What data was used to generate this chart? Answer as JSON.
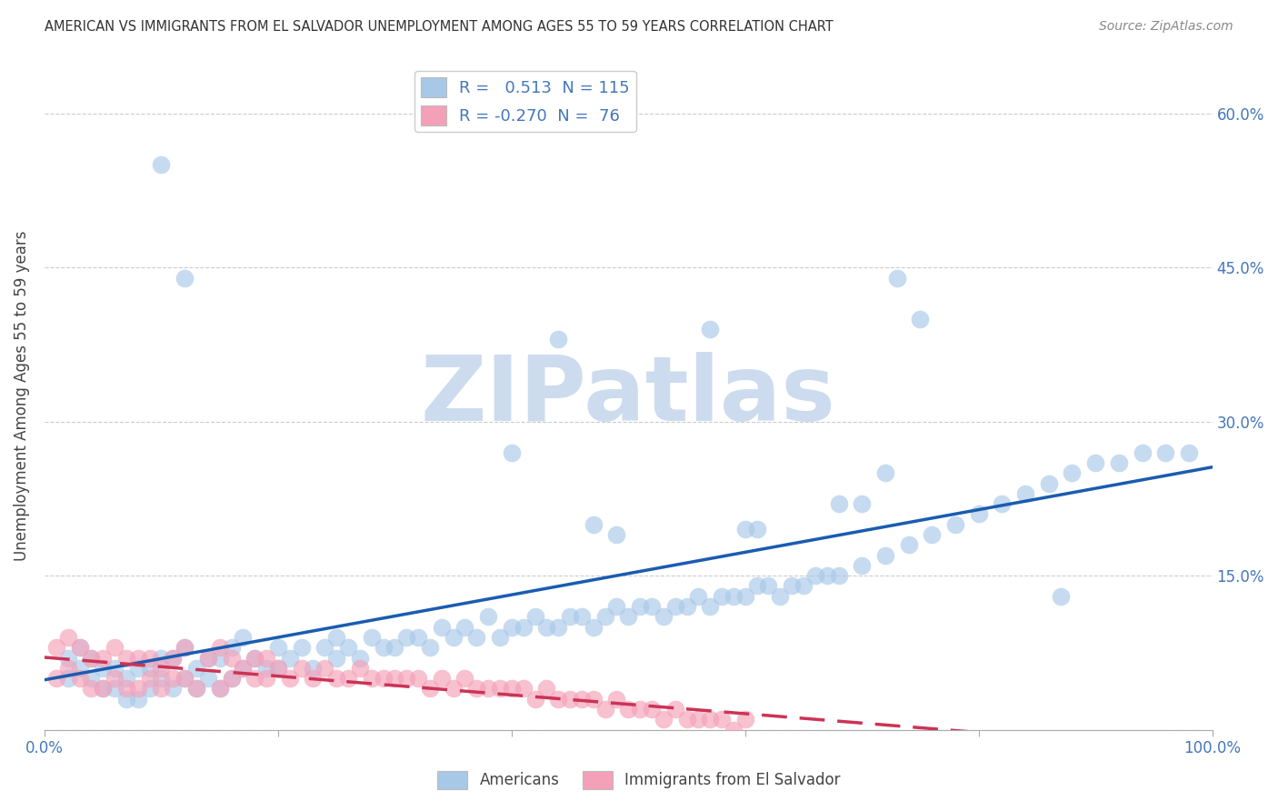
{
  "title": "AMERICAN VS IMMIGRANTS FROM EL SALVADOR UNEMPLOYMENT AMONG AGES 55 TO 59 YEARS CORRELATION CHART",
  "source": "Source: ZipAtlas.com",
  "ylabel": "Unemployment Among Ages 55 to 59 years",
  "xlim": [
    0.0,
    1.0
  ],
  "ylim": [
    0.0,
    0.65
  ],
  "americans_color": "#a8c8e8",
  "immigrants_color": "#f4a0b8",
  "americans_line_color": "#1a5cb0",
  "immigrants_line_color": "#cc3355",
  "legend_blue_box": "#a8c8e8",
  "legend_pink_box": "#f4a0b8",
  "R_americans": 0.513,
  "N_americans": 115,
  "R_immigrants": -0.27,
  "N_immigrants": 76,
  "watermark": "ZIPatlas",
  "watermark_color": "#ccdcee",
  "tick_color": "#4477bb",
  "grid_color": "#cccccc",
  "americans_x": [
    0.02,
    0.02,
    0.03,
    0.03,
    0.04,
    0.04,
    0.05,
    0.05,
    0.06,
    0.06,
    0.07,
    0.07,
    0.08,
    0.08,
    0.09,
    0.09,
    0.1,
    0.1,
    0.11,
    0.11,
    0.12,
    0.12,
    0.13,
    0.13,
    0.14,
    0.14,
    0.15,
    0.15,
    0.16,
    0.16,
    0.17,
    0.17,
    0.18,
    0.19,
    0.2,
    0.2,
    0.21,
    0.22,
    0.23,
    0.24,
    0.25,
    0.25,
    0.26,
    0.27,
    0.28,
    0.29,
    0.3,
    0.31,
    0.32,
    0.33,
    0.34,
    0.35,
    0.36,
    0.37,
    0.38,
    0.39,
    0.4,
    0.41,
    0.42,
    0.43,
    0.44,
    0.45,
    0.46,
    0.47,
    0.48,
    0.49,
    0.5,
    0.51,
    0.52,
    0.53,
    0.54,
    0.55,
    0.56,
    0.57,
    0.58,
    0.59,
    0.6,
    0.61,
    0.62,
    0.63,
    0.64,
    0.65,
    0.66,
    0.67,
    0.68,
    0.7,
    0.72,
    0.74,
    0.76,
    0.78,
    0.8,
    0.82,
    0.84,
    0.86,
    0.88,
    0.9,
    0.92,
    0.94,
    0.96,
    0.98,
    0.44,
    0.57,
    0.73,
    0.75,
    0.4,
    0.47,
    0.49,
    0.6,
    0.61,
    0.87,
    0.1,
    0.12,
    0.68,
    0.7,
    0.72
  ],
  "americans_y": [
    0.05,
    0.07,
    0.06,
    0.08,
    0.05,
    0.07,
    0.04,
    0.06,
    0.04,
    0.06,
    0.03,
    0.05,
    0.03,
    0.06,
    0.04,
    0.06,
    0.05,
    0.07,
    0.04,
    0.07,
    0.05,
    0.08,
    0.04,
    0.06,
    0.05,
    0.07,
    0.04,
    0.07,
    0.05,
    0.08,
    0.06,
    0.09,
    0.07,
    0.06,
    0.06,
    0.08,
    0.07,
    0.08,
    0.06,
    0.08,
    0.07,
    0.09,
    0.08,
    0.07,
    0.09,
    0.08,
    0.08,
    0.09,
    0.09,
    0.08,
    0.1,
    0.09,
    0.1,
    0.09,
    0.11,
    0.09,
    0.1,
    0.1,
    0.11,
    0.1,
    0.1,
    0.11,
    0.11,
    0.1,
    0.11,
    0.12,
    0.11,
    0.12,
    0.12,
    0.11,
    0.12,
    0.12,
    0.13,
    0.12,
    0.13,
    0.13,
    0.13,
    0.14,
    0.14,
    0.13,
    0.14,
    0.14,
    0.15,
    0.15,
    0.15,
    0.16,
    0.17,
    0.18,
    0.19,
    0.2,
    0.21,
    0.22,
    0.23,
    0.24,
    0.25,
    0.26,
    0.26,
    0.27,
    0.27,
    0.27,
    0.38,
    0.39,
    0.44,
    0.4,
    0.27,
    0.2,
    0.19,
    0.195,
    0.195,
    0.13,
    0.55,
    0.44,
    0.22,
    0.22,
    0.25
  ],
  "immigrants_x": [
    0.01,
    0.01,
    0.02,
    0.02,
    0.03,
    0.03,
    0.04,
    0.04,
    0.05,
    0.05,
    0.06,
    0.06,
    0.07,
    0.07,
    0.08,
    0.08,
    0.09,
    0.09,
    0.1,
    0.1,
    0.11,
    0.11,
    0.12,
    0.12,
    0.13,
    0.14,
    0.15,
    0.15,
    0.16,
    0.16,
    0.17,
    0.18,
    0.18,
    0.19,
    0.19,
    0.2,
    0.21,
    0.22,
    0.23,
    0.24,
    0.25,
    0.26,
    0.27,
    0.28,
    0.29,
    0.3,
    0.31,
    0.32,
    0.33,
    0.34,
    0.35,
    0.36,
    0.37,
    0.38,
    0.39,
    0.4,
    0.41,
    0.42,
    0.43,
    0.44,
    0.45,
    0.46,
    0.47,
    0.48,
    0.49,
    0.5,
    0.51,
    0.52,
    0.53,
    0.54,
    0.55,
    0.56,
    0.57,
    0.58,
    0.59,
    0.6
  ],
  "immigrants_y": [
    0.05,
    0.08,
    0.06,
    0.09,
    0.05,
    0.08,
    0.04,
    0.07,
    0.04,
    0.07,
    0.05,
    0.08,
    0.04,
    0.07,
    0.04,
    0.07,
    0.05,
    0.07,
    0.04,
    0.06,
    0.05,
    0.07,
    0.05,
    0.08,
    0.04,
    0.07,
    0.04,
    0.08,
    0.05,
    0.07,
    0.06,
    0.05,
    0.07,
    0.05,
    0.07,
    0.06,
    0.05,
    0.06,
    0.05,
    0.06,
    0.05,
    0.05,
    0.06,
    0.05,
    0.05,
    0.05,
    0.05,
    0.05,
    0.04,
    0.05,
    0.04,
    0.05,
    0.04,
    0.04,
    0.04,
    0.04,
    0.04,
    0.03,
    0.04,
    0.03,
    0.03,
    0.03,
    0.03,
    0.02,
    0.03,
    0.02,
    0.02,
    0.02,
    0.01,
    0.02,
    0.01,
    0.01,
    0.01,
    0.01,
    0.0,
    0.01
  ]
}
